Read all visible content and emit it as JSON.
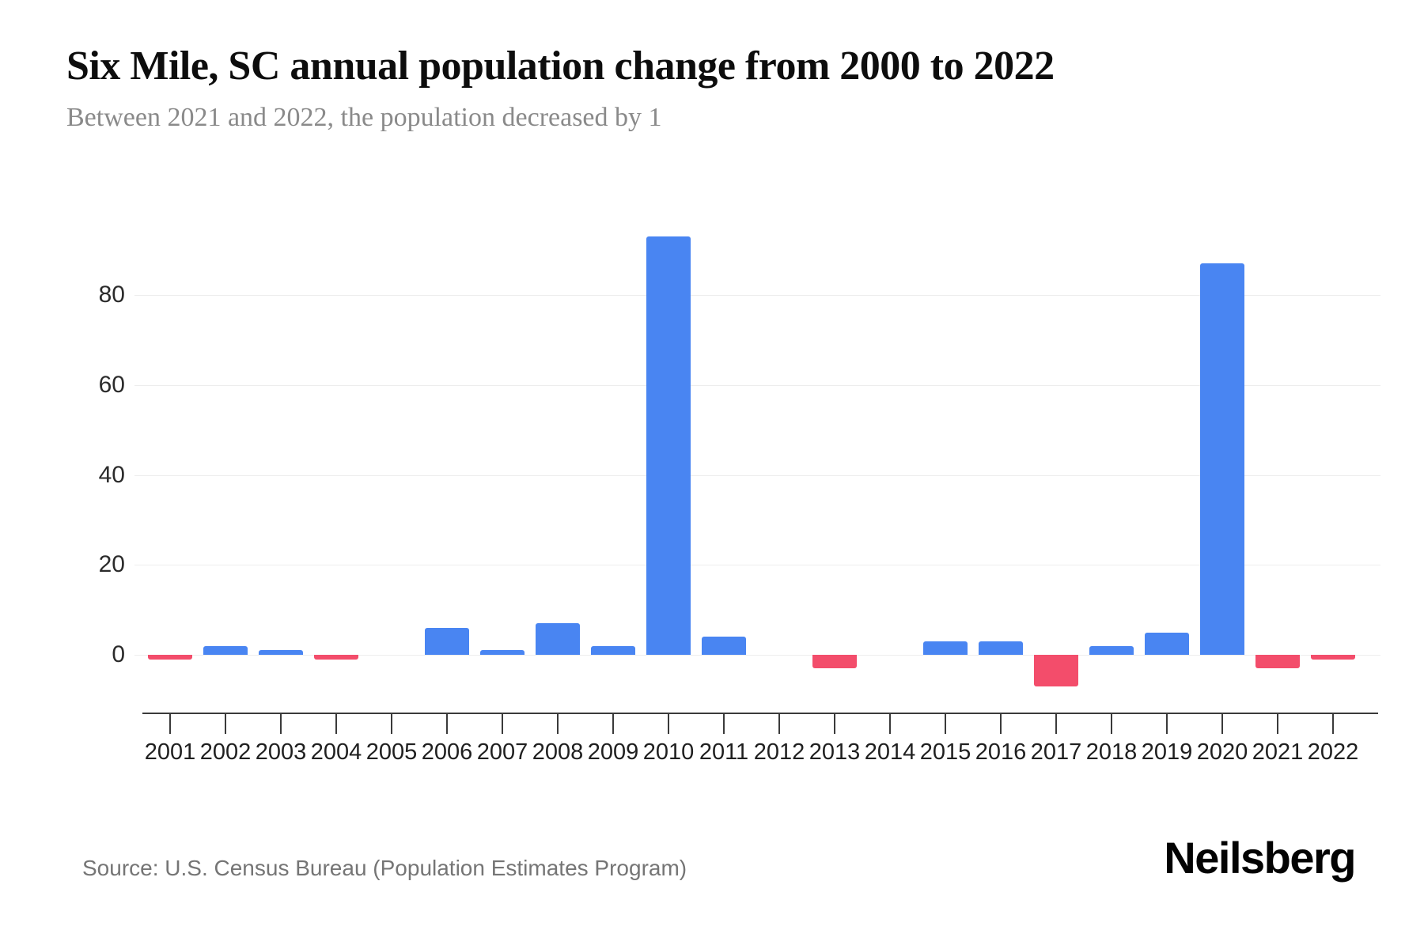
{
  "page": {
    "title": "Six Mile, SC annual population change from 2000 to 2022",
    "subtitle": "Between 2021 and 2022, the population decreased by 1",
    "source": "Source: U.S. Census Bureau (Population Estimates Program)",
    "brand": "Neilsberg"
  },
  "chart_data": {
    "type": "bar",
    "title": "Six Mile, SC annual population change from 2000 to 2022",
    "subtitle": "Between 2021 and 2022, the population decreased by 1",
    "categories": [
      "2001",
      "2002",
      "2003",
      "2004",
      "2005",
      "2006",
      "2007",
      "2008",
      "2009",
      "2010",
      "2011",
      "2012",
      "2013",
      "2014",
      "2015",
      "2016",
      "2017",
      "2018",
      "2019",
      "2020",
      "2021",
      "2022"
    ],
    "values": [
      -1,
      2,
      1,
      -1,
      0,
      6,
      1,
      7,
      2,
      93,
      4,
      0,
      -3,
      0,
      3,
      3,
      -7,
      2,
      5,
      87,
      -3,
      -1
    ],
    "xlabel": "",
    "ylabel": "",
    "yticks": [
      0,
      20,
      40,
      60,
      80
    ],
    "ylim": [
      -13,
      100
    ],
    "grid": true,
    "legend": false,
    "colors": {
      "positive_bar": "#4985f2",
      "negative_bar": "#f34d6b",
      "gridline": "#ededed",
      "axis": "#3a3a3a",
      "title_text": "#0d0d0d",
      "subtitle_text": "#8a8a8a"
    }
  }
}
